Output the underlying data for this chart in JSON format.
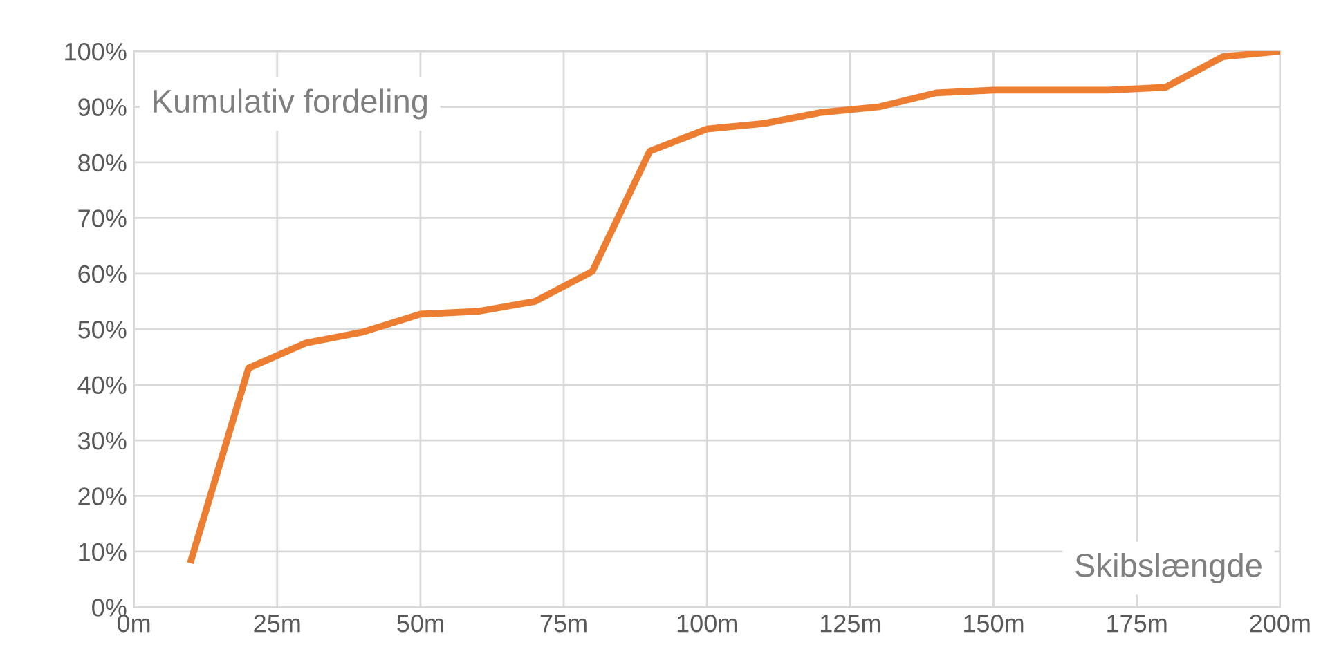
{
  "chart_data": {
    "type": "line",
    "xlabel": "Skibslængde",
    "ylabel": "Kumulativ fordeling",
    "x": [
      10,
      20,
      30,
      40,
      50,
      60,
      70,
      80,
      90,
      100,
      110,
      120,
      130,
      140,
      150,
      160,
      170,
      180,
      190,
      200
    ],
    "series": [
      {
        "color": "#ed7d31",
        "values": [
          8.5,
          43,
          47.5,
          49.5,
          52.7,
          53.2,
          55,
          60.4,
          82,
          86,
          87,
          89,
          90,
          92.5,
          93,
          93,
          93,
          93.5,
          99,
          100
        ]
      }
    ],
    "xlim": [
      0,
      200
    ],
    "ylim": [
      0,
      100
    ],
    "xticks": [
      {
        "value": 0,
        "label": "0m"
      },
      {
        "value": 25,
        "label": "25m"
      },
      {
        "value": 50,
        "label": "50m"
      },
      {
        "value": 75,
        "label": "75m"
      },
      {
        "value": 100,
        "label": "100m"
      },
      {
        "value": 125,
        "label": "125m"
      },
      {
        "value": 150,
        "label": "150m"
      },
      {
        "value": 175,
        "label": "175m"
      },
      {
        "value": 200,
        "label": "200m"
      }
    ],
    "yticks": [
      {
        "value": 0,
        "label": "0%"
      },
      {
        "value": 10,
        "label": "10%"
      },
      {
        "value": 20,
        "label": "20%"
      },
      {
        "value": 30,
        "label": "30%"
      },
      {
        "value": 40,
        "label": "40%"
      },
      {
        "value": 50,
        "label": "50%"
      },
      {
        "value": 60,
        "label": "60%"
      },
      {
        "value": 70,
        "label": "70%"
      },
      {
        "value": 80,
        "label": "80%"
      },
      {
        "value": 90,
        "label": "90%"
      },
      {
        "value": 100,
        "label": "100%"
      }
    ],
    "grid": true,
    "marker": "none",
    "line_style": "solid"
  }
}
